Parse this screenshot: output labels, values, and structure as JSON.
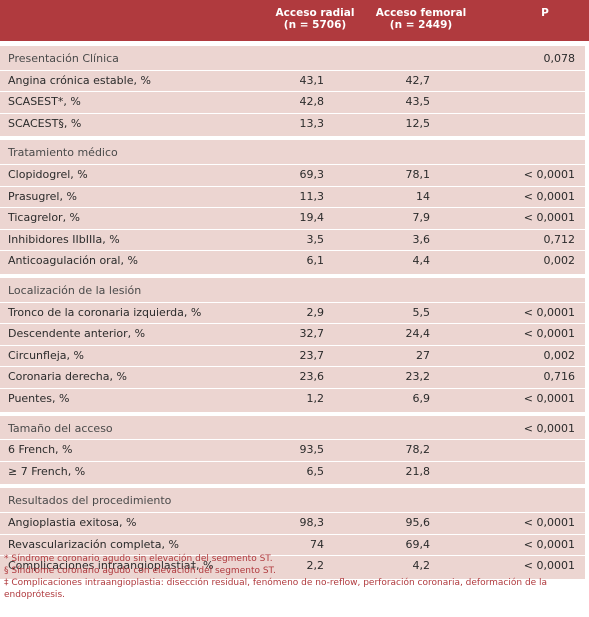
{
  "header": {
    "radial": "Acceso radial",
    "radial_n": "(n = 5706)",
    "femoral": "Acceso femoral",
    "femoral_n": "(n = 2449)",
    "p": "P"
  },
  "sections": [
    {
      "title": "Presentación Clínica",
      "title_p": "0,078",
      "rows": [
        {
          "label": "Angina crónica estable, %",
          "v1": "43,1",
          "v2": "42,7",
          "p": ""
        },
        {
          "label": "SCASEST*, %",
          "v1": "42,8",
          "v2": "43,5",
          "p": ""
        },
        {
          "label": "SCACEST§, %",
          "v1": "13,3",
          "v2": "12,5",
          "p": ""
        }
      ]
    },
    {
      "title": "Tratamiento médico",
      "title_p": "",
      "rows": [
        {
          "label": "Clopidogrel, %",
          "v1": "69,3",
          "v2": "78,1",
          "p": "< 0,0001"
        },
        {
          "label": "Prasugrel, %",
          "v1": "11,3",
          "v2": "14",
          "p": "< 0,0001"
        },
        {
          "label": "Ticagrelor, %",
          "v1": "19,4",
          "v2": "7,9",
          "p": "< 0,0001"
        },
        {
          "label": "Inhibidores IIbIIIa, %",
          "v1": "3,5",
          "v2": "3,6",
          "p": "0,712"
        },
        {
          "label": "Anticoagulación oral, %",
          "v1": "6,1",
          "v2": "4,4",
          "p": "0,002"
        }
      ]
    },
    {
      "title": "Localización de la lesión",
      "title_p": "",
      "rows": [
        {
          "label": "Tronco de la coronaria izquierda, %",
          "v1": "2,9",
          "v2": "5,5",
          "p": "< 0,0001"
        },
        {
          "label": "Descendente anterior, %",
          "v1": "32,7",
          "v2": "24,4",
          "p": "< 0,0001"
        },
        {
          "label": "Circunfleja, %",
          "v1": "23,7",
          "v2": "27",
          "p": "0,002"
        },
        {
          "label": "Coronaria derecha, %",
          "v1": "23,6",
          "v2": "23,2",
          "p": "0,716"
        },
        {
          "label": "Puentes, %",
          "v1": "1,2",
          "v2": "6,9",
          "p": "< 0,0001"
        }
      ]
    },
    {
      "title": "Tamaño del acceso",
      "title_p": "< 0,0001",
      "rows": [
        {
          "label": "6 French, %",
          "v1": "93,5",
          "v2": "78,2",
          "p": ""
        },
        {
          "label": "≥ 7 French, %",
          "v1": "6,5",
          "v2": "21,8",
          "p": ""
        }
      ]
    },
    {
      "title": "Resultados del procedimiento",
      "title_p": "",
      "rows": [
        {
          "label": "Angioplastia exitosa, %",
          "v1": "98,3",
          "v2": "95,6",
          "p": "< 0,0001"
        },
        {
          "label": "Revascularización completa, %",
          "v1": "74",
          "v2": "69,4",
          "p": "< 0,0001"
        },
        {
          "label": "Complicaciones intraangioplastia‡, %",
          "v1": "2,2",
          "v2": "4,2",
          "p": "< 0,0001"
        }
      ]
    }
  ],
  "footnotes": [
    "* Síndrome coronario agudo sin elevación del segmento ST.",
    "§ Síndrome coronario agudo con elevación del segmento ST.",
    "‡ Complicaciones intraangioplastia: disección residual, fenómeno de no-reflow, perforación coronaria, deformación de la endoprótesis."
  ],
  "colors": {
    "header": "#b03a3e",
    "section": "#ecd5d1",
    "footnote": "#b03a3e"
  }
}
